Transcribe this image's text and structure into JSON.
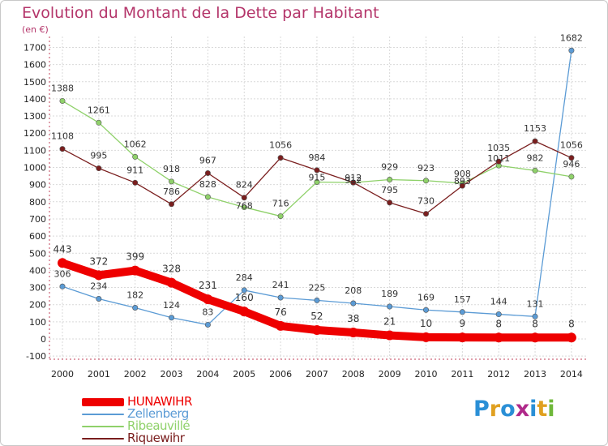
{
  "title": "Evolution du Montant de la Dette par Habitant",
  "subtitle": "(en €)",
  "logo": {
    "letters": [
      "P",
      "r",
      "o",
      "x",
      "i",
      "t",
      "i"
    ],
    "colors": [
      "#2a8fd6",
      "#e0a020",
      "#2a8fd6",
      "#b02a8a",
      "#2a8fd6",
      "#e0a020",
      "#6fb83a"
    ]
  },
  "chart_data": {
    "type": "line",
    "title": "Evolution du Montant de la Dette par Habitant",
    "ylabel": "(en €)",
    "xlabel": "",
    "x": [
      "2000",
      "2001",
      "2002",
      "2003",
      "2004",
      "2005",
      "2006",
      "2007",
      "2008",
      "2009",
      "2010",
      "2011",
      "2012",
      "2013",
      "2014"
    ],
    "ylim": [
      -100,
      1750
    ],
    "yticks": [
      -100,
      0,
      100,
      200,
      300,
      400,
      500,
      600,
      700,
      800,
      900,
      1000,
      1100,
      1200,
      1300,
      1400,
      1500,
      1600,
      1700
    ],
    "grid": true,
    "legend_position": "bottom-left",
    "series": [
      {
        "name": "HUNAWIHR",
        "color": "#ee0000",
        "values": [
          443,
          372,
          399,
          328,
          231,
          160,
          76,
          52,
          38,
          21,
          10,
          9,
          8,
          8,
          8
        ],
        "labels": [
          "443",
          "372",
          "399",
          "328",
          "231",
          "160",
          "76",
          "52",
          "38",
          "21",
          "10",
          "9",
          "8",
          "8",
          "8"
        ]
      },
      {
        "name": "Zellenberg",
        "color": "#5b9bd5",
        "values": [
          306,
          234,
          182,
          124,
          83,
          284,
          241,
          225,
          208,
          189,
          169,
          157,
          144,
          131,
          1682
        ],
        "labels": [
          "306",
          "234",
          "182",
          "124",
          "83",
          "284",
          "241",
          "225",
          "208",
          "189",
          "169",
          "157",
          "144",
          "131",
          "1682"
        ]
      },
      {
        "name": "Ribeauvillé",
        "color": "#8fd16a",
        "values": [
          1388,
          1261,
          1062,
          918,
          828,
          768,
          716,
          915,
          912,
          929,
          923,
          908,
          1011,
          982,
          946
        ],
        "labels": [
          "1388",
          "1261",
          "1062",
          "918",
          "828",
          "768",
          "716",
          "915",
          "912",
          "929",
          "923",
          "908",
          "1011",
          "982",
          "946"
        ]
      },
      {
        "name": "Riquewihr",
        "color": "#7a1e1e",
        "values": [
          1108,
          995,
          911,
          786,
          967,
          824,
          1056,
          984,
          912,
          795,
          730,
          893,
          1035,
          1153,
          1056
        ],
        "labels": [
          "1108",
          "995",
          "911",
          "786",
          "967",
          "824",
          "1056",
          "984",
          "912",
          "795",
          "730",
          "893",
          "1035",
          "1153",
          "1056"
        ]
      }
    ]
  }
}
